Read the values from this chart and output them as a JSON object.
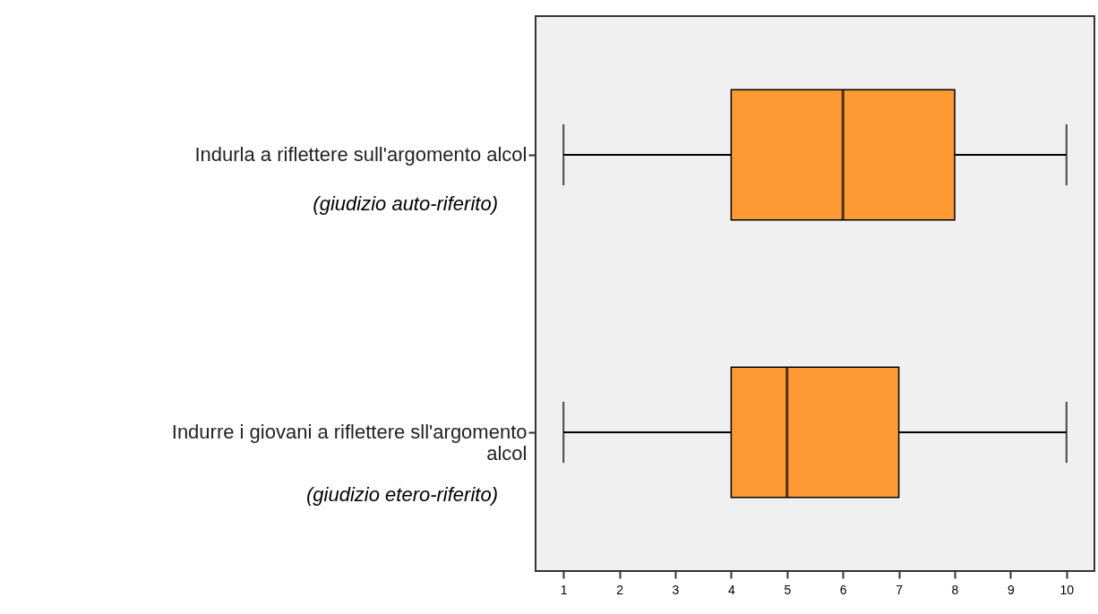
{
  "chart_data": {
    "type": "box",
    "orientation": "horizontal",
    "categories": [
      "Indurla a riflettere sull'argomento alcol",
      "Indurre i giovani a riflettere sll'argomento alcol"
    ],
    "boxes": [
      {
        "low": 1,
        "q1": 4,
        "median": 6,
        "q3": 8,
        "high": 10
      },
      {
        "low": 1,
        "q1": 4,
        "median": 5,
        "q3": 7,
        "high": 10
      }
    ],
    "color": "#ff9933",
    "xlim": [
      0.5,
      10.5
    ],
    "xticks": [
      1,
      2,
      3,
      4,
      5,
      6,
      7,
      8,
      9,
      10
    ],
    "grid": false,
    "annotations": [
      "(giudizio auto-riferito)",
      "(giudizio etero-riferito)"
    ]
  }
}
